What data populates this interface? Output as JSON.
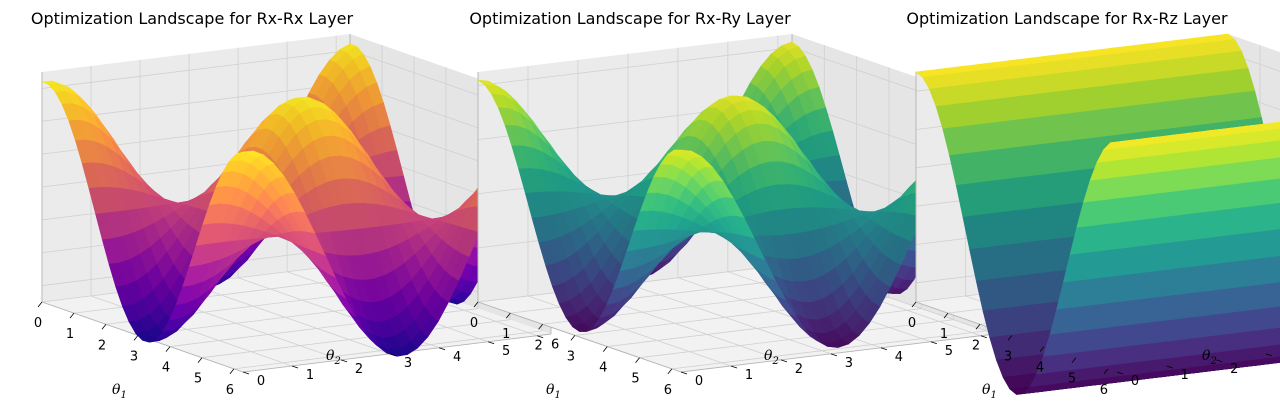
{
  "chart_data": [
    {
      "type": "surface",
      "title": "Optimization Landscape for Rx-Rx Layer",
      "xlabel": "θ1",
      "ylabel": "θ2",
      "zlabel": "",
      "colormap": "plasma",
      "x_ticks": [
        "0",
        "1",
        "2",
        "3",
        "4",
        "5",
        "6"
      ],
      "y_ticks": [
        "0",
        "1",
        "2",
        "3",
        "4",
        "5",
        "6"
      ],
      "z_ticks": [
        "0.1",
        "0.2",
        "0.3",
        "0.4",
        "0.5",
        "0.6",
        "0.7"
      ],
      "xlim": [
        0,
        6.283
      ],
      "ylim": [
        0,
        6.283
      ],
      "zlim": [
        0.05,
        0.75
      ],
      "surface": {
        "z_min": 0.02,
        "z_max": 0.75
      }
    },
    {
      "type": "surface",
      "title": "Optimization Landscape for Rx-Ry Layer",
      "xlabel": "θ1",
      "ylabel": "θ2",
      "zlabel": "",
      "colormap": "viridis",
      "x_ticks": [
        "0",
        "1",
        "2",
        "3",
        "4",
        "5",
        "6"
      ],
      "y_ticks": [
        "0",
        "1",
        "2",
        "3",
        "4",
        "5",
        "6"
      ],
      "z_ticks": [
        "0.0",
        "0.2",
        "0.4",
        "0.6",
        "0.8"
      ],
      "xlim": [
        0,
        6.283
      ],
      "ylim": [
        0,
        6.283
      ],
      "zlim": [
        0,
        0.85
      ],
      "surface": {
        "z_min": 0.0,
        "z_max": 0.85
      }
    },
    {
      "type": "surface",
      "title": "Optimization Landscape for Rx-Rz Layer",
      "xlabel": "θ1",
      "ylabel": "θ2",
      "zlabel": "",
      "colormap": "viridis",
      "x_ticks": [
        "0",
        "1",
        "2",
        "3",
        "4",
        "5",
        "6"
      ],
      "y_ticks": [
        "0",
        "1",
        "2",
        "3",
        "4",
        "5",
        "6"
      ],
      "z_ticks": [
        "0.2",
        "0.3",
        "0.4",
        "0.5",
        "0.6",
        "0.7"
      ],
      "xlim": [
        0,
        6.283
      ],
      "ylim": [
        0,
        6.283
      ],
      "zlim": [
        0.15,
        0.75
      ],
      "surface": {
        "z_min": 0.0,
        "z_max": 0.75
      }
    }
  ]
}
